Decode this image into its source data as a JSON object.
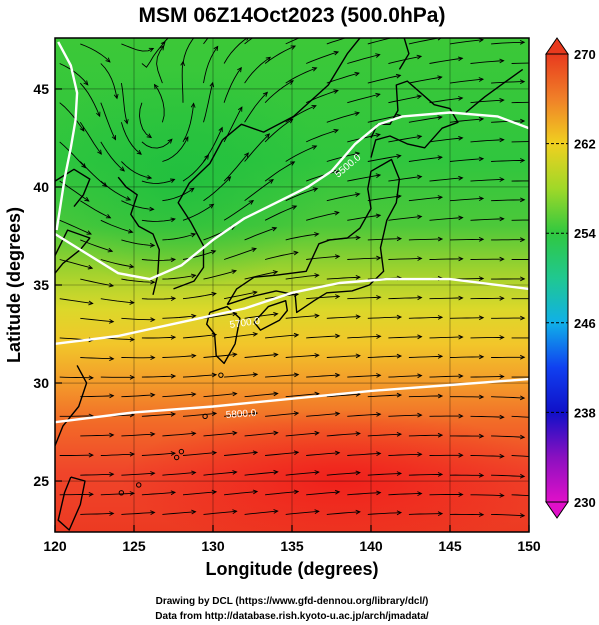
{
  "title": "MSM 06Z14Oct2023 (500.0hPa)",
  "x_axis": {
    "label": "Longitude (degrees)",
    "ticks": [
      "120",
      "125",
      "130",
      "135",
      "140",
      "145",
      "150"
    ],
    "range": [
      120,
      150
    ]
  },
  "y_axis": {
    "label": "Latitude  (degrees)",
    "ticks": [
      "25",
      "30",
      "35",
      "40",
      "45"
    ],
    "range": [
      22.4,
      47.6
    ]
  },
  "colorbar": {
    "ticks": [
      "270",
      "262",
      "254",
      "246",
      "238",
      "230"
    ],
    "range": [
      230,
      270
    ]
  },
  "contour_labels": [
    "5700.0",
    "5500.0",
    "5800.0"
  ],
  "footer": {
    "line1": "Drawing by DCL (https://www.gfd-dennou.org/library/dcl/)",
    "line2": "Data from http://database.rish.kyoto-u.ac.jp/arch/jmadata/"
  },
  "colors": {
    "warm": "#e83a1e",
    "mid": "#f0d020",
    "cool": "#3ec83c",
    "contour": "#ffffff",
    "coast": "#000000"
  },
  "chart_data": {
    "type": "heatmap",
    "title": "MSM 06Z14Oct2023 (500.0hPa)",
    "xlabel": "Longitude (degrees)",
    "ylabel": "Latitude  (degrees)",
    "xlim": [
      120,
      150
    ],
    "ylim": [
      22.4,
      47.6
    ],
    "colorbar_range": [
      230,
      270
    ],
    "field": "temperature (shaded) with wind streamlines and height contours",
    "contours": [
      {
        "label": "5500.0",
        "path": [
          [
            120,
            37.6
          ],
          [
            122,
            36.6
          ],
          [
            124,
            35.6
          ],
          [
            126,
            35.3
          ],
          [
            128,
            36.0
          ],
          [
            130,
            37.3
          ],
          [
            132,
            38.4
          ],
          [
            134,
            39.2
          ],
          [
            136,
            40.0
          ],
          [
            137.5,
            40.8
          ],
          [
            139,
            42.2
          ],
          [
            140.5,
            43.2
          ],
          [
            142,
            43.6
          ],
          [
            145,
            43.8
          ],
          [
            148,
            43.6
          ],
          [
            150,
            43.0
          ]
        ]
      },
      {
        "label": "5700.0",
        "path": [
          [
            120,
            32.0
          ],
          [
            124,
            32.4
          ],
          [
            128,
            33.1
          ],
          [
            132,
            33.8
          ],
          [
            135,
            34.6
          ],
          [
            138,
            35.1
          ],
          [
            141,
            35.3
          ],
          [
            145,
            35.3
          ],
          [
            150,
            34.8
          ]
        ]
      },
      {
        "label": "5800.0",
        "path": [
          [
            120,
            28.0
          ],
          [
            125,
            28.5
          ],
          [
            130,
            28.8
          ],
          [
            135,
            29.2
          ],
          [
            140,
            29.6
          ],
          [
            145,
            29.9
          ],
          [
            150,
            30.2
          ]
        ]
      },
      {
        "label": "",
        "path": [
          [
            120.2,
            47.4
          ],
          [
            121.0,
            46.2
          ],
          [
            121.4,
            44.8
          ],
          [
            121.3,
            43.4
          ],
          [
            121.0,
            42.0
          ],
          [
            120.6,
            40.4
          ],
          [
            120.3,
            38.8
          ],
          [
            120.1,
            37.8
          ]
        ]
      }
    ]
  }
}
